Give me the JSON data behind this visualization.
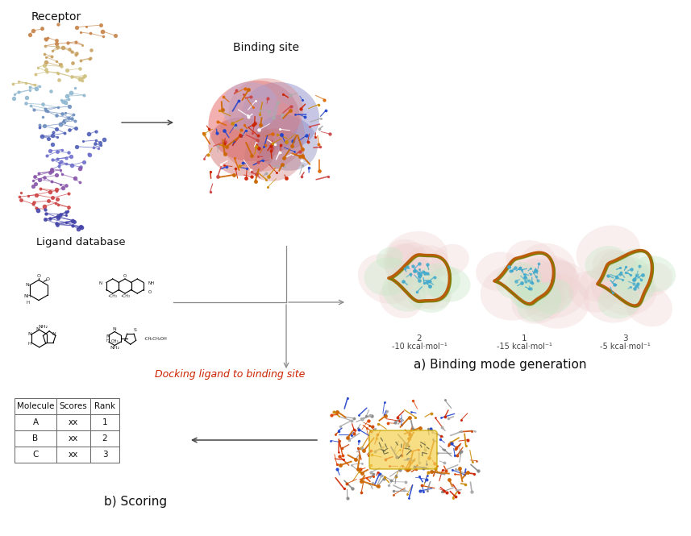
{
  "bg_color": "#ffffff",
  "fig_width": 8.57,
  "fig_height": 6.65,
  "dpi": 100,
  "receptor_label": "Receptor",
  "binding_site_label": "Binding site",
  "ligand_db_label": "Ligand database",
  "docking_label": "Docking ligand to binding site",
  "binding_mode_label": "a) Binding mode generation",
  "scoring_label": "b) Scoring",
  "pose_labels": [
    [
      "2",
      "-10 kcal·mol⁻¹"
    ],
    [
      "1",
      "-15 kcal·mol⁻¹"
    ],
    [
      "3",
      "-5 kcal·mol⁻¹"
    ]
  ],
  "table_headers": [
    "Molecule",
    "Scores",
    "Rank"
  ],
  "table_rows": [
    [
      "A",
      "xx",
      "1"
    ],
    [
      "B",
      "xx",
      "2"
    ],
    [
      "C",
      "xx",
      "3"
    ]
  ],
  "docking_label_color": "#cc2200",
  "arrow_color": "#444444",
  "table_border_color": "#666666",
  "label_color": "#111111",
  "receptor_colors": [
    "#c8844a",
    "#c8a060",
    "#d0c080",
    "#90b8d0",
    "#7090c0",
    "#5060b8",
    "#7070cc",
    "#8855aa",
    "#cc4444",
    "#4444aa"
  ],
  "binding_site_surface_colors": [
    "#e89090",
    "#c888aa",
    "#9090cc",
    "#ddaaaa",
    "#bbbbdd"
  ],
  "binding_site_stick_colors": [
    "#cc2200",
    "#aaaaaa",
    "#2244cc",
    "#cc8800",
    "#dd6600",
    "#ffffff",
    "#cc4444"
  ],
  "pose_surface_color": "#c8e8c8",
  "pose_surface_pink": "#f0d0d0",
  "pose_ribbon_color": "#b85500",
  "pose_green_line": "#668800",
  "pose_ligand_color": "#44aacc",
  "scored_stick_colors": [
    "#cc2200",
    "#aaaaaa",
    "#2244cc",
    "#cc8800",
    "#dd4400",
    "#888888",
    "#cc4400"
  ],
  "yellow_box_color": "#f5d050",
  "yellow_box_edge": "#c8a800"
}
